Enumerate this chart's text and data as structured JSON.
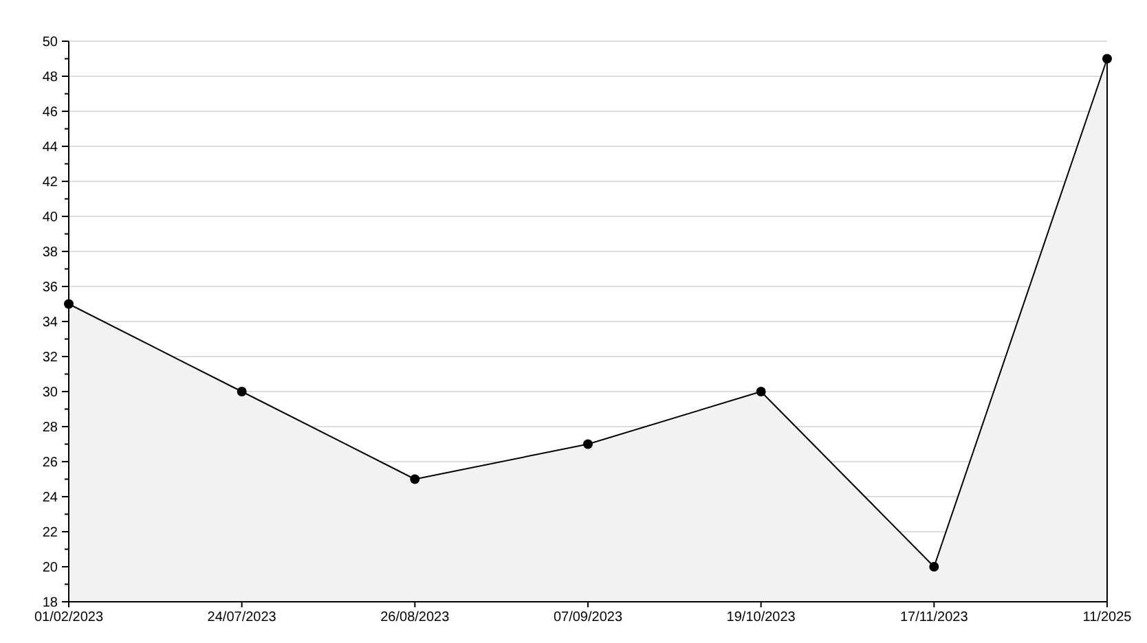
{
  "chart_data": {
    "type": "area",
    "categories": [
      "01/02/2023",
      "24/07/2023",
      "26/08/2023",
      "07/09/2023",
      "19/10/2023",
      "17/11/2023",
      "11/2025"
    ],
    "series": [
      {
        "color": "#000000",
        "values": [
          35,
          30,
          25,
          27,
          30,
          20,
          49
        ]
      }
    ],
    "ylim": [
      18,
      50
    ],
    "yticks": [
      18,
      {
        "value": 19,
        "label": null
      },
      20,
      {
        "value": 21,
        "label": null
      },
      22,
      {
        "value": 23,
        "label": null
      },
      24,
      {
        "value": 25,
        "label": null
      },
      26,
      {
        "value": 27,
        "label": null
      },
      28,
      {
        "value": 29,
        "label": null
      },
      30,
      {
        "value": 31,
        "label": null
      },
      32,
      {
        "value": 33,
        "label": null
      },
      34,
      {
        "value": 35,
        "label": null
      },
      36,
      {
        "value": 37,
        "label": null
      },
      38,
      {
        "value": 39,
        "label": null
      },
      40,
      {
        "value": 41,
        "label": null
      },
      42,
      {
        "value": 43,
        "label": null
      },
      44,
      {
        "value": 45,
        "label": null
      },
      46,
      {
        "value": 47,
        "label": null
      },
      48,
      {
        "value": 49,
        "label": null
      },
      50
    ],
    "grid": "y",
    "marker": "circle",
    "line_style": "solid"
  }
}
